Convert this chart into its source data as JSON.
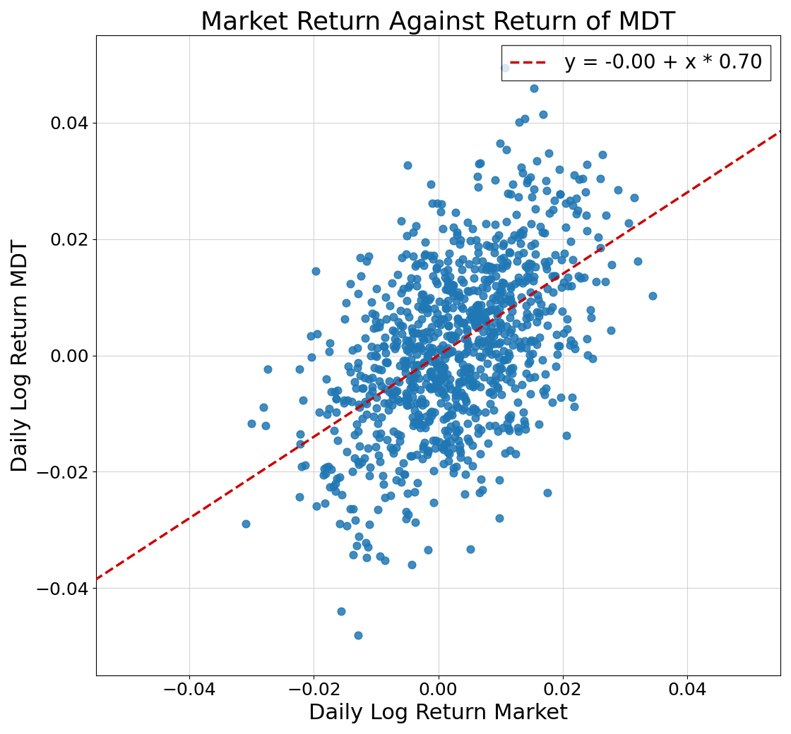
{
  "title": "Market Return Against Return of MDT",
  "xlabel": "Daily Log Return Market",
  "ylabel": "Daily Log Return MDT",
  "legend_label": "y = -0.00 + x * 0.70",
  "intercept": 0.0,
  "slope": 0.7,
  "xlim": [
    -0.055,
    0.055
  ],
  "ylim": [
    -0.055,
    0.055
  ],
  "dot_color": "#1f77b4",
  "line_color": "#cc0000",
  "dot_size": 60,
  "dot_alpha": 0.85,
  "n_points": 1000,
  "seed": 7,
  "market_std": 0.011,
  "residual_std": 0.012,
  "market_skew": 0.003,
  "title_fontsize": 26,
  "label_fontsize": 22,
  "tick_fontsize": 18,
  "legend_fontsize": 20
}
